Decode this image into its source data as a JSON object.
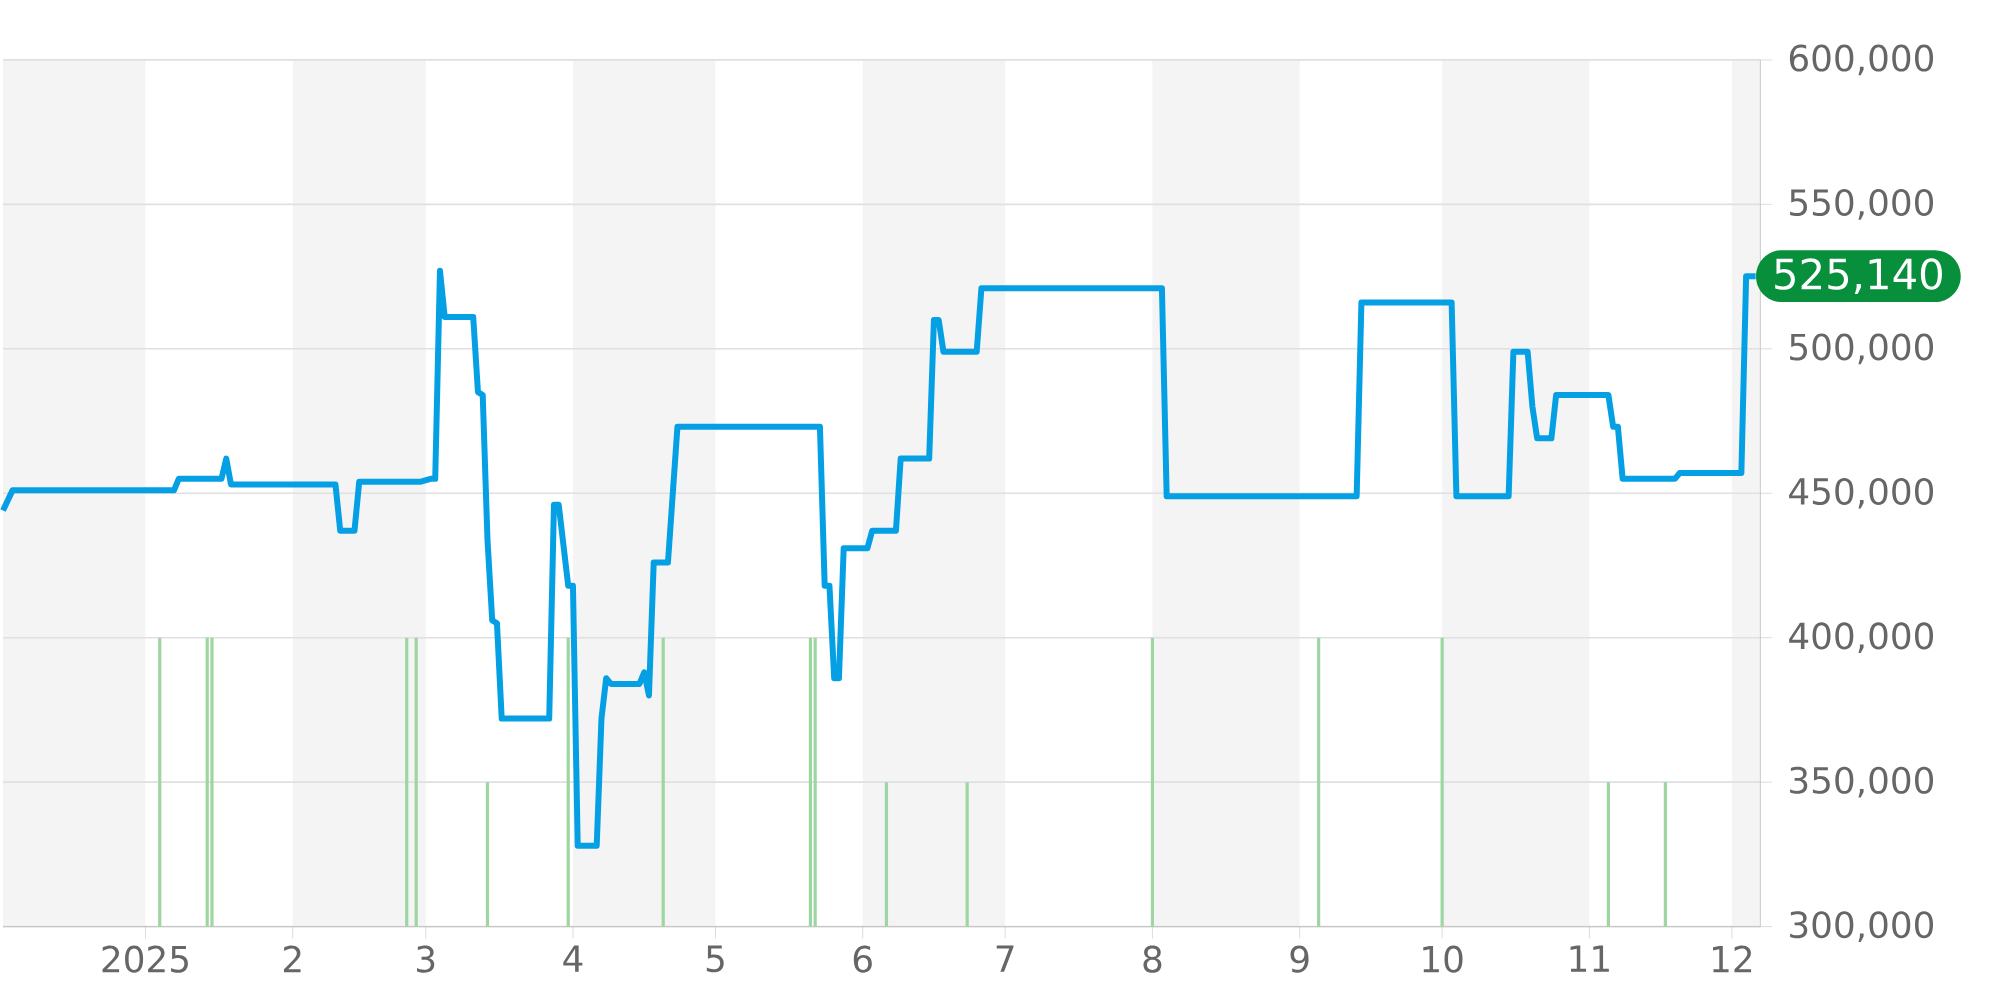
{
  "chart_data": {
    "type": "line",
    "xlim": [
      "2024-12-02",
      "2025-12-07"
    ],
    "xticks": [
      {
        "value": "2025-01-01",
        "label": "2025"
      },
      {
        "value": "2025-02-01",
        "label": "2"
      },
      {
        "value": "2025-03-01",
        "label": "3"
      },
      {
        "value": "2025-04-01",
        "label": "4"
      },
      {
        "value": "2025-05-01",
        "label": "5"
      },
      {
        "value": "2025-06-01",
        "label": "6"
      },
      {
        "value": "2025-07-01",
        "label": "7"
      },
      {
        "value": "2025-08-01",
        "label": "8"
      },
      {
        "value": "2025-09-01",
        "label": "9"
      },
      {
        "value": "2025-10-01",
        "label": "10"
      },
      {
        "value": "2025-11-01",
        "label": "11"
      },
      {
        "value": "2025-12-01",
        "label": "12"
      }
    ],
    "ylim": [
      300000,
      600000
    ],
    "yticks": [
      {
        "value": 300000,
        "label": "300,000"
      },
      {
        "value": 350000,
        "label": "350,000"
      },
      {
        "value": 400000,
        "label": "400,000"
      },
      {
        "value": 450000,
        "label": "450,000"
      },
      {
        "value": 500000,
        "label": "500,000"
      },
      {
        "value": 550000,
        "label": "550,000"
      },
      {
        "value": 600000,
        "label": "600,000"
      }
    ],
    "grid": "y",
    "series": [
      {
        "type": "bar",
        "color": "#9dd6a0",
        "x": [
          "2025-01-04",
          "2025-01-14",
          "2025-01-15",
          "2025-02-25",
          "2025-02-27",
          "2025-03-14",
          "2025-03-31",
          "2025-04-20",
          "2025-05-21",
          "2025-05-22",
          "2025-06-06",
          "2025-06-23",
          "2025-08-01",
          "2025-09-05",
          "2025-10-01",
          "2025-11-05",
          "2025-11-17"
        ],
        "values": [
          400000,
          400000,
          400000,
          400000,
          400000,
          350000,
          400000,
          400000,
          400000,
          400000,
          350000,
          350000,
          400000,
          400000,
          400000,
          350000,
          350000
        ]
      },
      {
        "color": "#05a0e4",
        "x": [
          "2024-12-02",
          "2024-12-04",
          "2025-01-07",
          "2025-01-08",
          "2025-01-17",
          "2025-01-18",
          "2025-01-19",
          "2025-02-10",
          "2025-02-11",
          "2025-02-14",
          "2025-02-15",
          "2025-02-28",
          "2025-03-02",
          "2025-03-03",
          "2025-03-04",
          "2025-03-05",
          "2025-03-11",
          "2025-03-12",
          "2025-03-13",
          "2025-03-14",
          "2025-03-15",
          "2025-03-16",
          "2025-03-17",
          "2025-03-27",
          "2025-03-28",
          "2025-03-29",
          "2025-03-31",
          "2025-04-01",
          "2025-04-02",
          "2025-04-06",
          "2025-04-07",
          "2025-04-08",
          "2025-04-09",
          "2025-04-15",
          "2025-04-16",
          "2025-04-17",
          "2025-04-18",
          "2025-04-21",
          "2025-04-23",
          "2025-05-23",
          "2025-05-24",
          "2025-05-25",
          "2025-05-26",
          "2025-05-27",
          "2025-05-28",
          "2025-06-02",
          "2025-06-03",
          "2025-06-08",
          "2025-06-09",
          "2025-06-15",
          "2025-06-16",
          "2025-06-17",
          "2025-06-18",
          "2025-06-25",
          "2025-06-26",
          "2025-08-03",
          "2025-08-04",
          "2025-09-13",
          "2025-09-14",
          "2025-10-03",
          "2025-10-04",
          "2025-10-15",
          "2025-10-16",
          "2025-10-19",
          "2025-10-20",
          "2025-10-21",
          "2025-10-24",
          "2025-10-25",
          "2025-11-05",
          "2025-11-06",
          "2025-11-07",
          "2025-11-08",
          "2025-11-19",
          "2025-11-20",
          "2025-12-03",
          "2025-12-04",
          "2025-12-06"
        ],
        "values": [
          444000,
          451000,
          451000,
          455000,
          455000,
          462000,
          453000,
          453000,
          437000,
          437000,
          454000,
          454000,
          455000,
          455000,
          527000,
          511000,
          511000,
          485000,
          484000,
          434000,
          406000,
          405000,
          372000,
          372000,
          446000,
          446000,
          418000,
          418000,
          328000,
          328000,
          372000,
          386000,
          384000,
          384000,
          388000,
          380000,
          426000,
          426000,
          473000,
          473000,
          418000,
          418000,
          386000,
          386000,
          431000,
          431000,
          437000,
          437000,
          462000,
          462000,
          510000,
          510000,
          499000,
          499000,
          521000,
          521000,
          449000,
          449000,
          516000,
          516000,
          449000,
          449000,
          499000,
          499000,
          480000,
          469000,
          469000,
          484000,
          484000,
          473000,
          473000,
          455000,
          455000,
          457000,
          457000,
          525140,
          525140
        ]
      }
    ],
    "bands": [
      {
        "axis": "x",
        "from": "2024-12-02",
        "to": "2025-01-01",
        "color": "#f4f4f4"
      },
      {
        "axis": "x",
        "from": "2025-02-01",
        "to": "2025-03-01",
        "color": "#f4f4f4"
      },
      {
        "axis": "x",
        "from": "2025-04-01",
        "to": "2025-05-01",
        "color": "#f4f4f4"
      },
      {
        "axis": "x",
        "from": "2025-06-01",
        "to": "2025-07-01",
        "color": "#f4f4f4"
      },
      {
        "axis": "x",
        "from": "2025-08-01",
        "to": "2025-09-01",
        "color": "#f4f4f4"
      },
      {
        "axis": "x",
        "from": "2025-10-01",
        "to": "2025-11-01",
        "color": "#f4f4f4"
      },
      {
        "axis": "x",
        "from": "2025-12-01",
        "to": "2025-12-07",
        "color": "#f4f4f4"
      }
    ],
    "annotations": [
      {
        "text": "525,140",
        "x": "2025-12-06",
        "y": 525140
      }
    ]
  }
}
